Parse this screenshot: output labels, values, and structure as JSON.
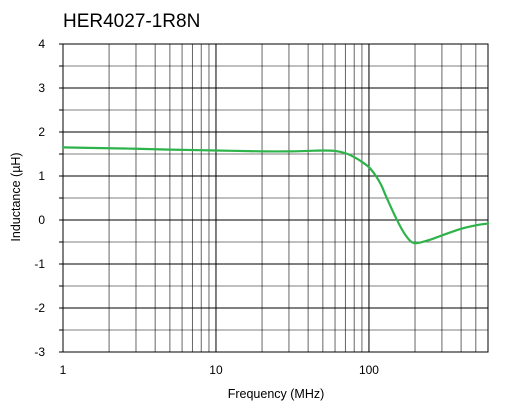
{
  "chart_data": {
    "type": "line",
    "title": "HER4027-1R8N",
    "xlabel": "Frequency (MHz)",
    "ylabel": "Inductance (µH)",
    "x_scale": "log",
    "xlim": [
      1,
      600
    ],
    "ylim": [
      -3,
      4
    ],
    "x_tick_labels": [
      "1",
      "10",
      "100"
    ],
    "y_tick_labels": [
      "4",
      "3",
      "2",
      "1",
      "0",
      "-1",
      "-2",
      "-3"
    ],
    "grid": true,
    "legend": "none",
    "series": [
      {
        "color": "#2db34a",
        "x": [
          1,
          2,
          3,
          5,
          10,
          20,
          30,
          40,
          50,
          60,
          70,
          80,
          90,
          100,
          110,
          120,
          130,
          150,
          170,
          190,
          210,
          250,
          300,
          400,
          500,
          600
        ],
        "y": [
          1.65,
          1.63,
          1.62,
          1.6,
          1.58,
          1.56,
          1.56,
          1.57,
          1.58,
          1.57,
          1.52,
          1.43,
          1.32,
          1.2,
          1.02,
          0.8,
          0.52,
          0.05,
          -0.3,
          -0.5,
          -0.52,
          -0.45,
          -0.35,
          -0.2,
          -0.12,
          -0.08
        ]
      }
    ]
  }
}
